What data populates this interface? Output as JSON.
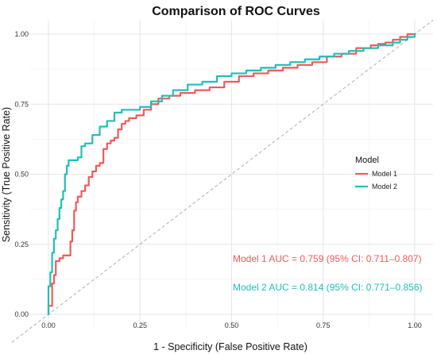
{
  "chart_data": {
    "type": "line",
    "title": "Comparison of ROC Curves",
    "xlabel": "1 - Specificity (False Positive Rate)",
    "ylabel": "Sensitivity (True Positive Rate)",
    "xlim": [
      0,
      1
    ],
    "ylim": [
      0,
      1
    ],
    "x_ticks": [
      "0.00",
      "0.25",
      "0.50",
      "0.75",
      "1.00"
    ],
    "y_ticks": [
      "0.00",
      "0.25",
      "0.50",
      "0.75",
      "1.00"
    ],
    "grid": true,
    "legend": {
      "title": "Model",
      "placement": "right"
    },
    "reference_line": {
      "style": "dashed",
      "color": "#b5b5b5",
      "x": [
        0,
        1
      ],
      "y": [
        0,
        1
      ]
    },
    "series": [
      {
        "name": "Model 1",
        "color": "#f05a5a",
        "auc_text": "Model 1 AUC = 0.759 (95% CI: 0.711–0.807)",
        "x": [
          0.0,
          0.0,
          0.01,
          0.01,
          0.015,
          0.02,
          0.02,
          0.03,
          0.04,
          0.05,
          0.06,
          0.065,
          0.07,
          0.07,
          0.075,
          0.08,
          0.09,
          0.1,
          0.11,
          0.12,
          0.13,
          0.14,
          0.15,
          0.16,
          0.17,
          0.18,
          0.19,
          0.2,
          0.21,
          0.22,
          0.24,
          0.26,
          0.28,
          0.3,
          0.33,
          0.36,
          0.4,
          0.44,
          0.48,
          0.52,
          0.56,
          0.6,
          0.64,
          0.68,
          0.72,
          0.76,
          0.8,
          0.84,
          0.88,
          0.9,
          0.92,
          0.94,
          0.96,
          0.98,
          1.0
        ],
        "y": [
          0.0,
          0.03,
          0.08,
          0.11,
          0.14,
          0.17,
          0.19,
          0.2,
          0.21,
          0.21,
          0.26,
          0.3,
          0.33,
          0.37,
          0.4,
          0.42,
          0.44,
          0.46,
          0.49,
          0.51,
          0.53,
          0.54,
          0.59,
          0.61,
          0.62,
          0.63,
          0.66,
          0.68,
          0.69,
          0.7,
          0.71,
          0.73,
          0.75,
          0.77,
          0.78,
          0.79,
          0.8,
          0.81,
          0.83,
          0.85,
          0.86,
          0.87,
          0.88,
          0.89,
          0.9,
          0.92,
          0.93,
          0.95,
          0.96,
          0.965,
          0.97,
          0.98,
          0.99,
          1.0,
          1.0
        ]
      },
      {
        "name": "Model 2",
        "color": "#1fbfb8",
        "auc_text": "Model 2 AUC = 0.814 (95% CI: 0.771–0.856)",
        "x": [
          0.0,
          0.0,
          0.005,
          0.01,
          0.015,
          0.02,
          0.025,
          0.03,
          0.035,
          0.04,
          0.045,
          0.05,
          0.055,
          0.06,
          0.065,
          0.08,
          0.09,
          0.1,
          0.12,
          0.14,
          0.16,
          0.18,
          0.2,
          0.22,
          0.25,
          0.28,
          0.31,
          0.34,
          0.38,
          0.42,
          0.46,
          0.5,
          0.54,
          0.58,
          0.62,
          0.66,
          0.7,
          0.74,
          0.78,
          0.82,
          0.86,
          0.9,
          0.94,
          0.96,
          0.98,
          1.0
        ],
        "y": [
          0.0,
          0.1,
          0.15,
          0.22,
          0.27,
          0.3,
          0.34,
          0.38,
          0.41,
          0.44,
          0.5,
          0.53,
          0.55,
          0.55,
          0.55,
          0.56,
          0.6,
          0.61,
          0.64,
          0.67,
          0.69,
          0.72,
          0.73,
          0.73,
          0.74,
          0.76,
          0.78,
          0.8,
          0.82,
          0.83,
          0.85,
          0.86,
          0.87,
          0.88,
          0.89,
          0.9,
          0.91,
          0.92,
          0.93,
          0.94,
          0.95,
          0.96,
          0.97,
          0.98,
          0.99,
          1.0
        ]
      }
    ]
  }
}
